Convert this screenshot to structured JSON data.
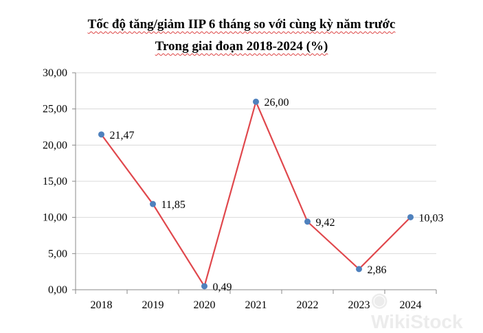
{
  "chart_data": {
    "type": "line",
    "title": "Tốc độ tăng/giảm IIP 6 tháng so với cùng kỳ năm trước",
    "subtitle": "Trong giai đoạn 2018-2024 (%)",
    "categories": [
      "2018",
      "2019",
      "2020",
      "2021",
      "2022",
      "2023",
      "2024"
    ],
    "series": [
      {
        "name": "IIP",
        "values": [
          21.47,
          11.85,
          0.49,
          26.0,
          9.42,
          2.86,
          10.03
        ],
        "labels": [
          "21,47",
          "11,85",
          "0,49",
          "26,00",
          "9,42",
          "2,86",
          "10,03"
        ]
      }
    ],
    "yticks": [
      "0,00",
      "5,00",
      "10,00",
      "15,00",
      "20,00",
      "25,00",
      "30,00"
    ],
    "ylim": [
      0,
      30
    ],
    "grid": true,
    "legend": "none",
    "xlabel": "",
    "ylabel": "",
    "colors": {
      "line": "#e0474c",
      "marker": "#4f81bd",
      "grid": "#d9d9d9",
      "axis": "#888888"
    }
  },
  "watermark": "WikiStock"
}
